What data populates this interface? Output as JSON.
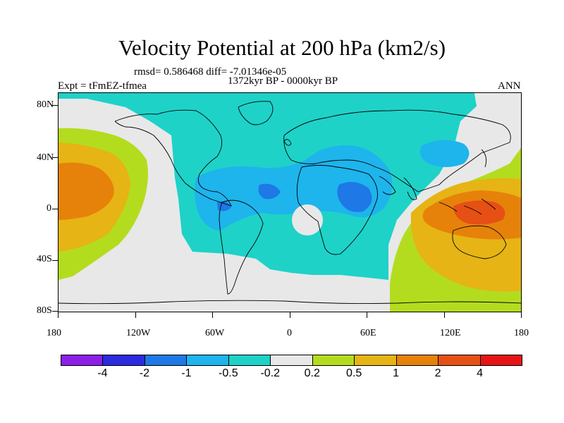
{
  "title": "Velocity Potential at 200 hPa (km2/s)",
  "stats": "rmsd= 0.586468 diff= -7.01346e-05",
  "period": "1372kyr BP - 0000kyr BP",
  "experiment": "Expt = tFmEZ-tfmea",
  "season": "ANN",
  "x_ticks": [
    "180",
    "120W",
    "60W",
    "0",
    "60E",
    "120E",
    "180"
  ],
  "y_ticks": [
    "80N",
    "40N",
    "0",
    "40S",
    "80S"
  ],
  "colorbar": {
    "colors": [
      "#8c1ee6",
      "#2b2be0",
      "#1e78e6",
      "#1eb4ec",
      "#1ed2c8",
      "#e8e8e8",
      "#b4dc1e",
      "#e6b414",
      "#e6820a",
      "#e65014",
      "#e61414"
    ],
    "labels": [
      "-4",
      "-2",
      "-1",
      "-0.5",
      "-0.2",
      "0.2",
      "0.5",
      "1",
      "2",
      "4"
    ]
  }
}
